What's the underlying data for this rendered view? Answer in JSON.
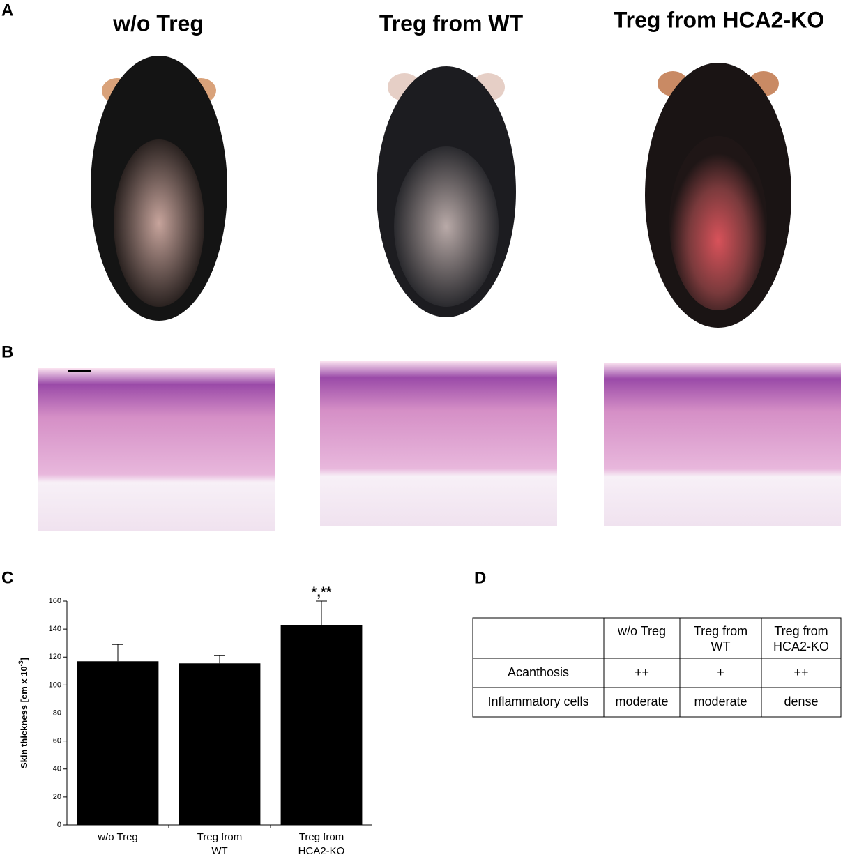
{
  "panels": [
    "A",
    "B",
    "C",
    "D"
  ],
  "photo_titles": [
    "w/o Treg",
    "Treg from WT",
    "Treg from HCA2-KO"
  ],
  "chart_data": {
    "type": "bar",
    "ylabel": {
      "text": "Skin thickness [cm x 10",
      "sup": "-3",
      "end": "]"
    },
    "categories": [
      [
        "w/o Treg"
      ],
      [
        "Treg from",
        "WT"
      ],
      [
        "Treg from",
        "HCA2-KO"
      ]
    ],
    "values": [
      117,
      115.5,
      143
    ],
    "errors": [
      12,
      5.5,
      17
    ],
    "color": "#000000",
    "annotations": [
      {
        "index": 2,
        "text": "*,**"
      }
    ],
    "ylim": [
      0,
      160
    ],
    "yticks": [
      0,
      20,
      40,
      60,
      80,
      100,
      120,
      140,
      160
    ]
  },
  "table": {
    "columns": [
      [
        "w/o Treg"
      ],
      [
        "Treg from",
        "WT"
      ],
      [
        "Treg from",
        "HCA2-KO"
      ]
    ],
    "rows": [
      {
        "label": "Acanthosis",
        "cells": [
          "++",
          "+",
          "++"
        ]
      },
      {
        "label": "Inflammatory cells",
        "cells": [
          "moderate",
          "moderate",
          "dense"
        ]
      }
    ]
  }
}
